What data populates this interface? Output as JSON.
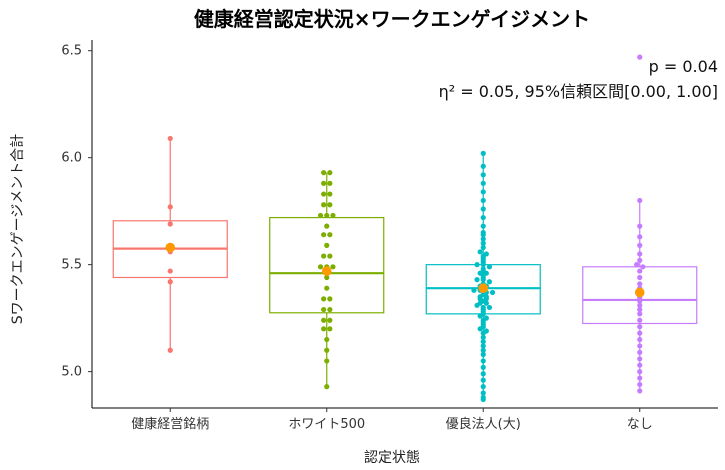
{
  "chart_data": {
    "type": "boxplot",
    "title": "健康経営認定状況×ワークエンゲイジメント",
    "xlabel": "認定状態",
    "ylabel": "Sワークエンゲージメント合計",
    "ylim": [
      4.83,
      6.55
    ],
    "yticks": [
      5.0,
      5.5,
      6.0,
      6.5
    ],
    "ytick_labels": [
      "5.0",
      "5.5",
      "6.0",
      "6.5"
    ],
    "grid": false,
    "annotations": {
      "p_value": "p = 0.04",
      "effect_size": "η²  = 0.05, 95%信頼区間[0.00, 1.00]"
    },
    "mean_color": "#ff9900",
    "categories": [
      {
        "name": "健康経営銘柄",
        "color": "#f8766d",
        "box": {
          "q1": 5.44,
          "median": 5.575,
          "q3": 5.705,
          "lower_whisker": 5.095,
          "upper_whisker": 6.09
        },
        "mean": 5.58,
        "points": [
          6.09,
          5.77,
          5.69,
          5.59,
          5.58,
          5.56,
          5.57,
          5.47,
          5.42,
          5.1
        ]
      },
      {
        "name": "ホワイト500",
        "color": "#7cae00",
        "box": {
          "q1": 5.275,
          "median": 5.46,
          "q3": 5.72,
          "lower_whisker": 4.93,
          "upper_whisker": 5.93
        },
        "mean": 5.47,
        "points": [
          5.93,
          5.93,
          5.88,
          5.88,
          5.83,
          5.83,
          5.78,
          5.78,
          5.73,
          5.73,
          5.73,
          5.68,
          5.64,
          5.64,
          5.59,
          5.54,
          5.54,
          5.49,
          5.49,
          5.49,
          5.44,
          5.39,
          5.34,
          5.34,
          5.29,
          5.29,
          5.24,
          5.24,
          5.2,
          5.2,
          5.15,
          5.1,
          5.05,
          4.93
        ]
      },
      {
        "name": "優良法人(大)",
        "color": "#00bfc4",
        "box": {
          "q1": 5.27,
          "median": 5.39,
          "q3": 5.5,
          "lower_whisker": 4.87,
          "upper_whisker": 6.02
        },
        "mean": 5.39,
        "points": [
          6.02,
          5.96,
          5.92,
          5.88,
          5.84,
          5.8,
          5.76,
          5.72,
          5.68,
          5.65,
          5.64,
          5.62,
          5.6,
          5.58,
          5.56,
          5.55,
          5.54,
          5.53,
          5.52,
          5.51,
          5.5,
          5.5,
          5.49,
          5.48,
          5.47,
          5.46,
          5.46,
          5.45,
          5.44,
          5.43,
          5.43,
          5.42,
          5.41,
          5.4,
          5.4,
          5.39,
          5.38,
          5.38,
          5.37,
          5.37,
          5.36,
          5.35,
          5.35,
          5.34,
          5.34,
          5.33,
          5.32,
          5.32,
          5.31,
          5.3,
          5.3,
          5.29,
          5.28,
          5.27,
          5.26,
          5.25,
          5.24,
          5.23,
          5.22,
          5.21,
          5.2,
          5.19,
          5.18,
          5.16,
          5.14,
          5.12,
          5.1,
          5.08,
          5.05,
          5.02,
          4.99,
          4.96,
          4.93,
          4.9,
          4.88,
          4.87
        ]
      },
      {
        "name": "なし",
        "color": "#c77cff",
        "box": {
          "q1": 5.225,
          "median": 5.335,
          "q3": 5.49,
          "lower_whisker": 4.91,
          "upper_whisker": 5.8
        },
        "mean": 5.37,
        "outliers": [
          6.47
        ],
        "points": [
          6.47,
          5.8,
          5.68,
          5.63,
          5.59,
          5.55,
          5.52,
          5.5,
          5.49,
          5.47,
          5.44,
          5.41,
          5.39,
          5.37,
          5.36,
          5.35,
          5.34,
          5.33,
          5.31,
          5.29,
          5.27,
          5.24,
          5.21,
          5.18,
          5.15,
          5.12,
          5.09,
          5.06,
          5.03,
          5.0,
          4.97,
          4.94,
          4.91
        ]
      }
    ]
  }
}
